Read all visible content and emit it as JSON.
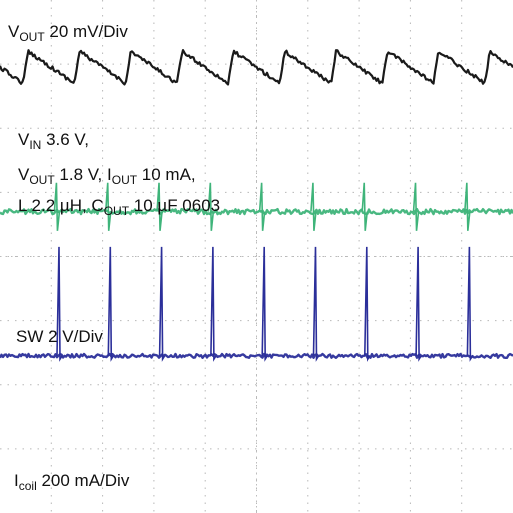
{
  "chart_data": {
    "type": "line",
    "title": "",
    "grid": true,
    "grid_divisions": {
      "x": 10,
      "y": 8
    },
    "traces": [
      {
        "name": "VOUT",
        "color": "#1a1a1a",
        "shape": "sawtooth",
        "scale": "20 mV/Div",
        "center_div": 1.05,
        "amplitude_div": 0.5,
        "pulse_period_div": 1.0,
        "first_pulse_div": 0.45,
        "noise_div": 0.03
      },
      {
        "name": "SW",
        "color": "#3fb47a",
        "shape": "spikes",
        "scale": "2 V/Div",
        "center_div": 3.3,
        "spike_up_div": 0.45,
        "spike_down_div": 0.3,
        "pulse_period_div": 1.0,
        "first_pulse_div": 1.1,
        "noise_div": 0.04
      },
      {
        "name": "Icoil",
        "color": "#2b2f9a",
        "shape": "spikes",
        "scale": "200 mA/Div",
        "center_div": 5.55,
        "spike_up_div": 1.7,
        "spike_down_div": 0.05,
        "pulse_period_div": 1.0,
        "first_pulse_div": 1.15,
        "noise_div": 0.03
      }
    ]
  },
  "labels": {
    "vout_scale": {
      "main": "V",
      "sub": "OUT",
      "rest": " 20 mV/Div"
    },
    "vin": {
      "main": "V",
      "sub": "IN",
      "rest": " 3.6 V,"
    },
    "line2": {
      "a_main": "V",
      "a_sub": "OUT",
      "a_rest": " 1.8 V, ",
      "b_main": "I",
      "b_sub": "OUT",
      "b_rest": " 10 mA,"
    },
    "line3": {
      "a": "L  2.2 µH, ",
      "c_main": "C",
      "c_sub": "OUT",
      "c_rest": " 10 µF 0603"
    },
    "sw_scale": "SW 2 V/Div",
    "icoil_scale": {
      "main": "I",
      "sub": "coil",
      "rest": " 200 mA/Div"
    }
  }
}
